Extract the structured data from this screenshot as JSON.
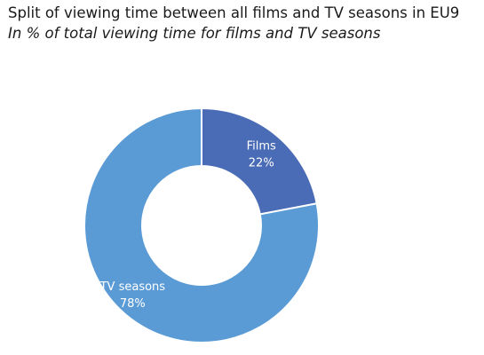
{
  "chart_data": {
    "type": "pie",
    "title": "Split of viewing time between all films and TV seasons in EU9",
    "subtitle": "In % of total viewing time for films and TV seasons",
    "slices": [
      {
        "label": "Films",
        "value": 22,
        "value_label": "22%",
        "color": "#4a6bb5"
      },
      {
        "label": "TV seasons",
        "value": 78,
        "value_label": "78%",
        "color": "#5b9bd5"
      }
    ],
    "unit": "%",
    "legend": "none",
    "donut": true
  }
}
